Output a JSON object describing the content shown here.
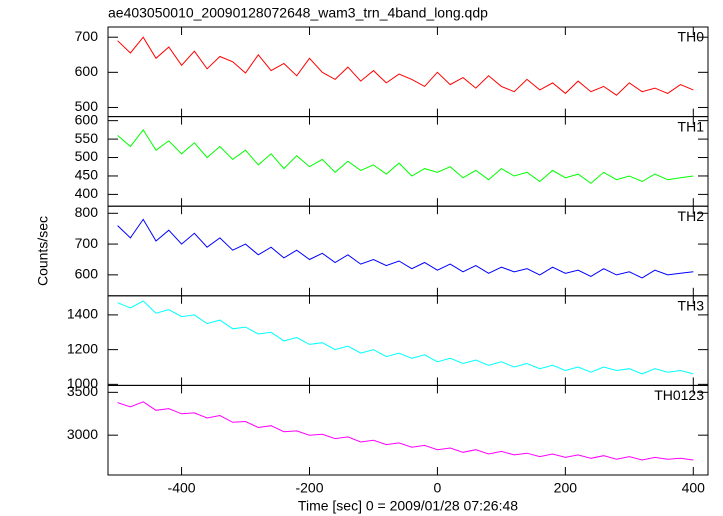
{
  "chart_data": {
    "type": "line",
    "title": "ae403050010_20090128072648_wam3_trn_4band_long.qdp",
    "xlabel": "Time [sec] 0 = 2009/01/28 07:26:48",
    "ylabel": "Counts/sec",
    "xlim": [
      -515,
      423
    ],
    "xticks": [
      -400,
      -200,
      0,
      200,
      400
    ],
    "x": [
      -500,
      -480,
      -460,
      -440,
      -420,
      -400,
      -380,
      -360,
      -340,
      -320,
      -300,
      -280,
      -260,
      -240,
      -220,
      -200,
      -180,
      -160,
      -140,
      -120,
      -100,
      -80,
      -60,
      -40,
      -20,
      0,
      20,
      40,
      60,
      80,
      100,
      120,
      140,
      160,
      180,
      200,
      220,
      240,
      260,
      280,
      300,
      320,
      340,
      360,
      380,
      400
    ],
    "series": [
      {
        "name": "TH0",
        "color": "#ff0000",
        "ylim": [
          474,
          729
        ],
        "yticks": [
          500,
          600,
          700
        ],
        "values": [
          690,
          655,
          700,
          640,
          672,
          620,
          660,
          610,
          645,
          630,
          598,
          650,
          605,
          625,
          590,
          640,
          600,
          580,
          615,
          575,
          605,
          570,
          595,
          580,
          560,
          600,
          565,
          585,
          555,
          590,
          560,
          545,
          580,
          550,
          570,
          540,
          575,
          545,
          560,
          535,
          570,
          545,
          555,
          540,
          565,
          550
        ]
      },
      {
        "name": "TH1",
        "color": "#00ff00",
        "ylim": [
          368,
          611
        ],
        "yticks": [
          400,
          450,
          500,
          550,
          600
        ],
        "values": [
          560,
          530,
          575,
          520,
          545,
          510,
          540,
          500,
          530,
          495,
          520,
          480,
          510,
          470,
          505,
          475,
          495,
          460,
          490,
          465,
          480,
          455,
          485,
          450,
          470,
          460,
          475,
          445,
          465,
          440,
          470,
          450,
          460,
          435,
          465,
          445,
          455,
          430,
          460,
          440,
          450,
          435,
          455,
          440,
          445,
          450
        ]
      },
      {
        "name": "TH2",
        "color": "#0000ff",
        "ylim": [
          532,
          823
        ],
        "yticks": [
          600,
          700,
          800
        ],
        "values": [
          760,
          720,
          780,
          710,
          745,
          700,
          735,
          690,
          720,
          680,
          700,
          665,
          690,
          655,
          680,
          650,
          670,
          640,
          665,
          635,
          650,
          630,
          645,
          620,
          640,
          615,
          635,
          610,
          630,
          605,
          625,
          610,
          620,
          600,
          625,
          605,
          615,
          595,
          620,
          600,
          610,
          590,
          615,
          600,
          605,
          610
        ]
      },
      {
        "name": "TH3",
        "color": "#00ffff",
        "ylim": [
          994,
          1510
        ],
        "yticks": [
          1000,
          1200,
          1400
        ],
        "values": [
          1470,
          1440,
          1480,
          1410,
          1430,
          1390,
          1400,
          1350,
          1370,
          1320,
          1330,
          1290,
          1300,
          1250,
          1270,
          1230,
          1240,
          1200,
          1220,
          1180,
          1200,
          1160,
          1180,
          1150,
          1170,
          1130,
          1150,
          1120,
          1140,
          1110,
          1130,
          1100,
          1120,
          1090,
          1110,
          1080,
          1100,
          1070,
          1100,
          1080,
          1090,
          1060,
          1090,
          1070,
          1080,
          1060
        ]
      },
      {
        "name": "TH0123",
        "color": "#ff00ff",
        "ylim": [
          2535,
          3581
        ],
        "yticks": [
          3000,
          3500
        ],
        "values": [
          3380,
          3330,
          3390,
          3290,
          3310,
          3250,
          3260,
          3200,
          3230,
          3150,
          3160,
          3090,
          3110,
          3040,
          3050,
          3000,
          3010,
          2960,
          2980,
          2920,
          2940,
          2890,
          2910,
          2860,
          2880,
          2830,
          2850,
          2800,
          2830,
          2780,
          2810,
          2770,
          2790,
          2750,
          2780,
          2740,
          2770,
          2730,
          2760,
          2720,
          2750,
          2710,
          2740,
          2720,
          2730,
          2710
        ]
      }
    ]
  }
}
